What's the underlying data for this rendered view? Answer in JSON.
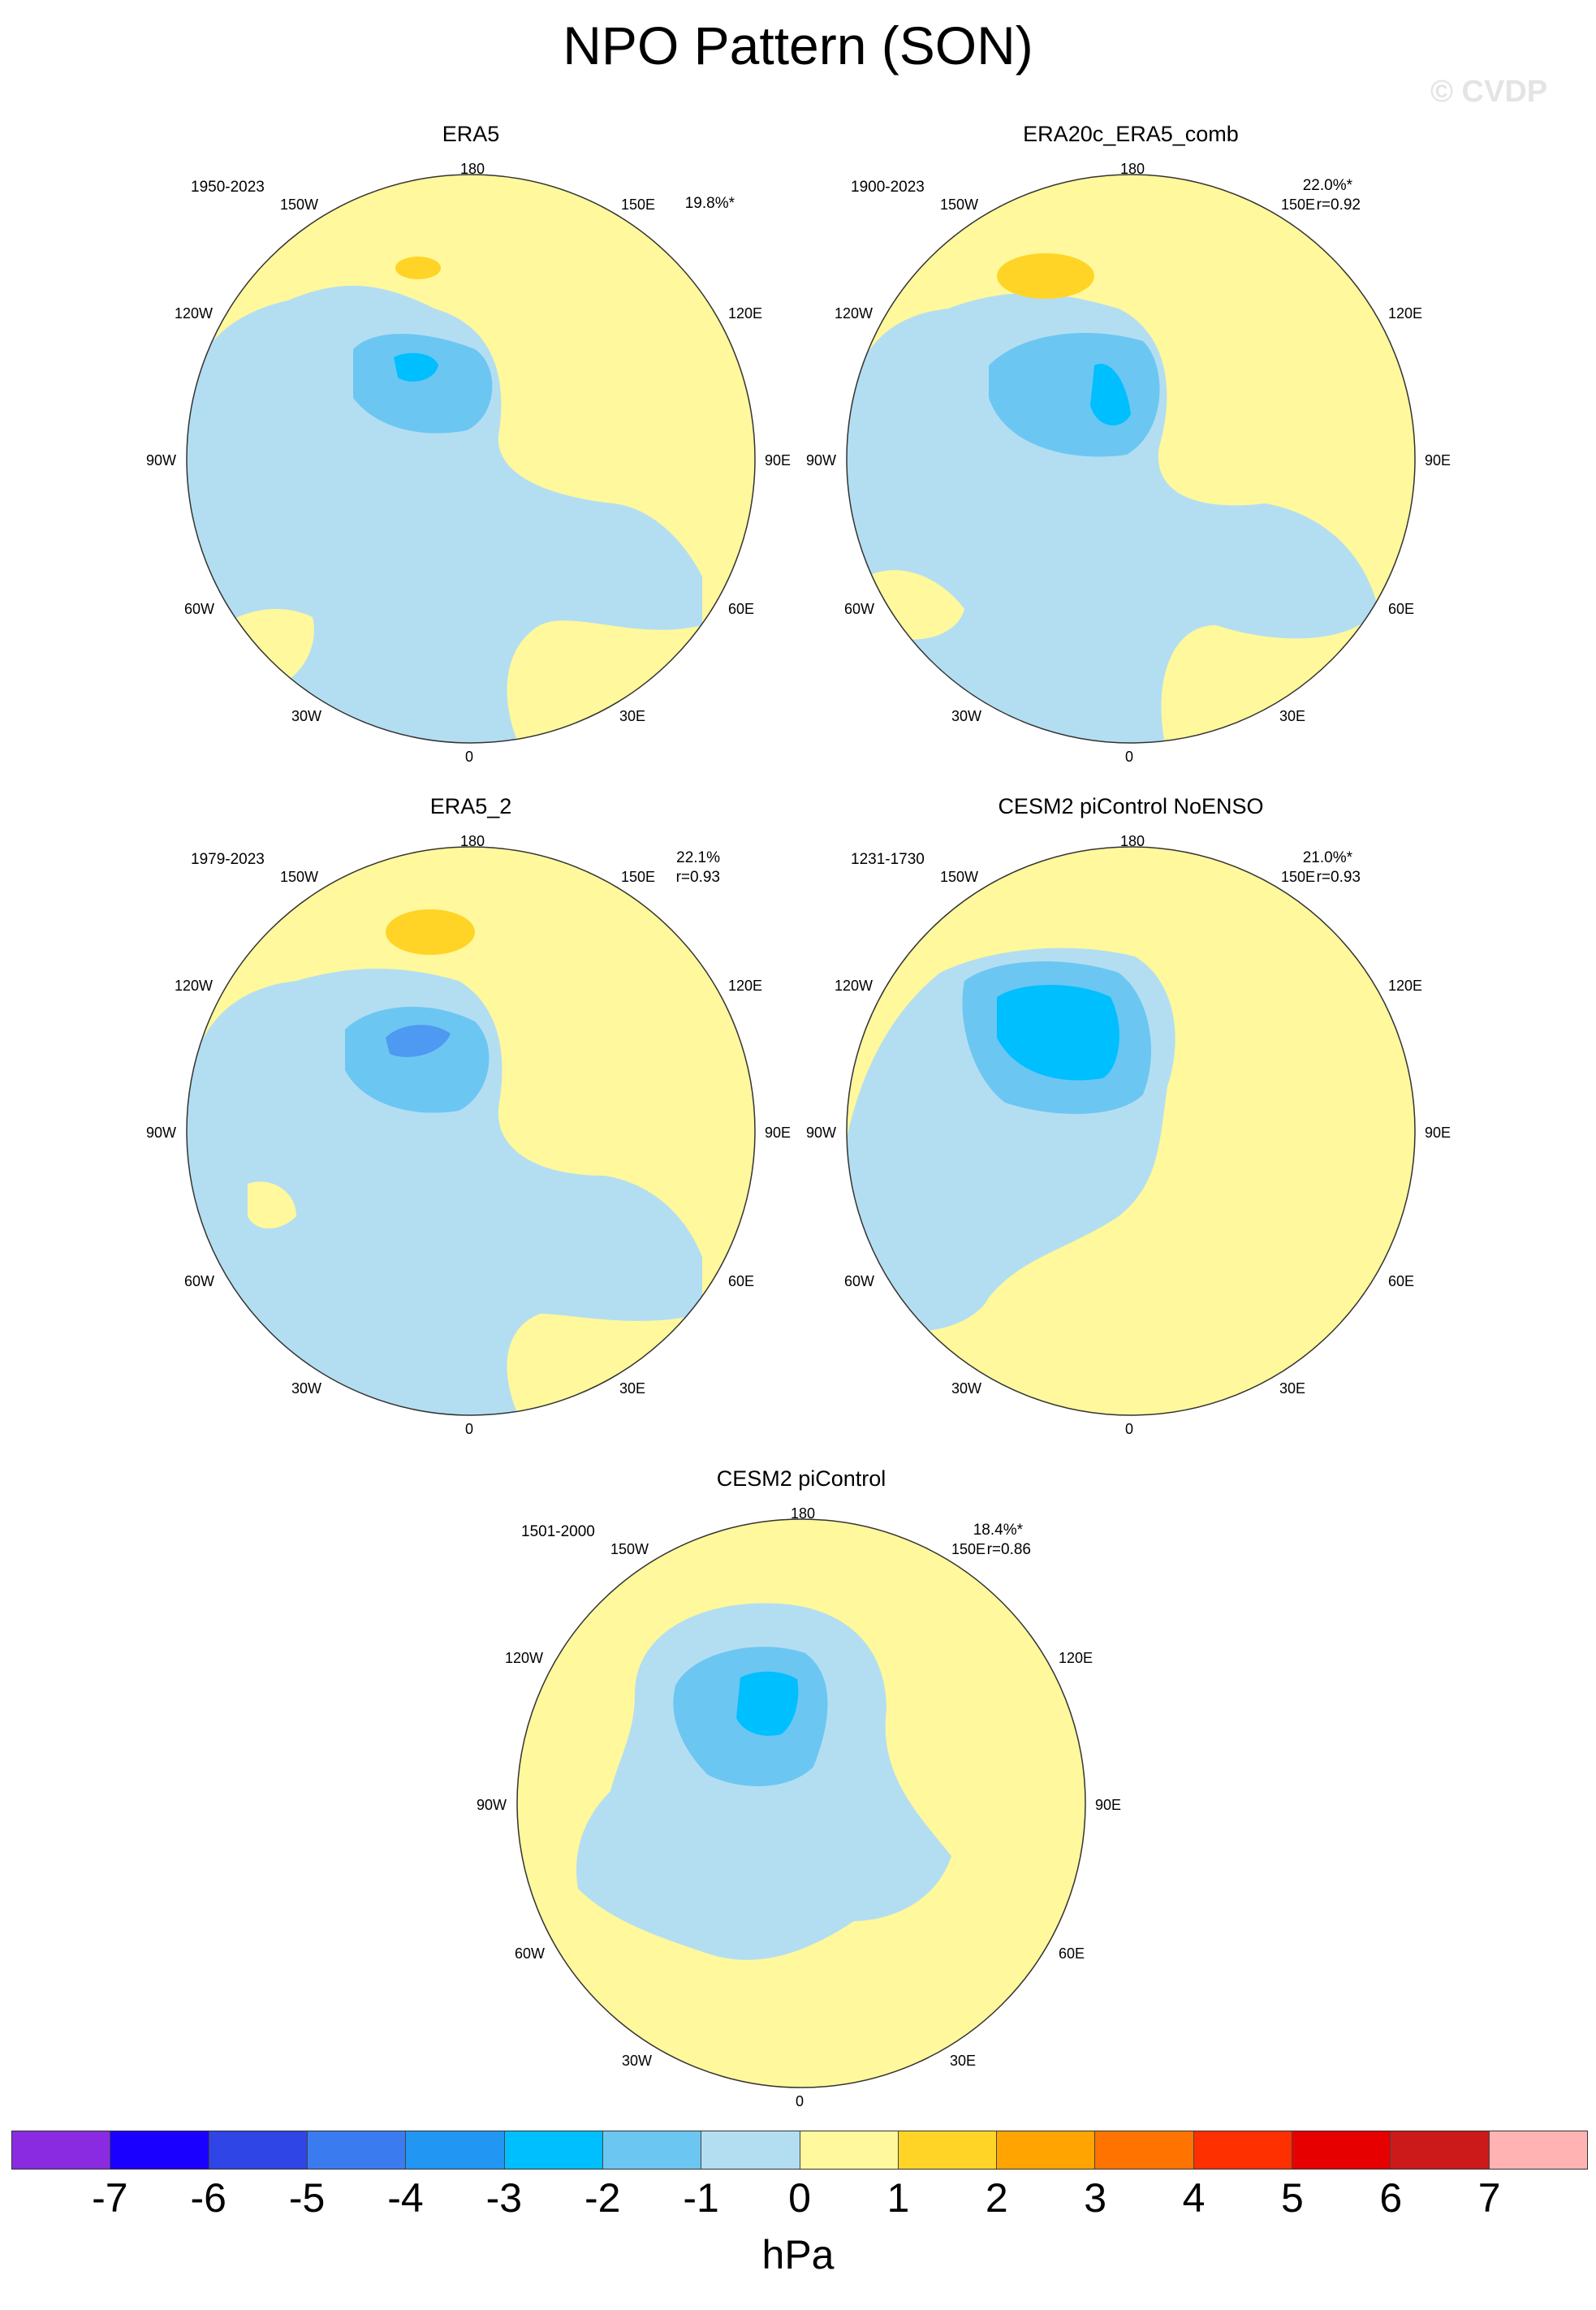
{
  "title": "NPO Pattern (SON)",
  "watermark": "© CVDP",
  "map_labels": {
    "lon_180": "180",
    "lon_150w": "150W",
    "lon_150e": "150E",
    "lon_120w": "120W",
    "lon_120e": "120E",
    "lon_90w": "90W",
    "lon_90e": "90E",
    "lon_60w": "60W",
    "lon_60e": "60E",
    "lon_30w": "30W",
    "lon_30e": "30E",
    "lon_0": "0"
  },
  "panels": [
    {
      "title": "ERA5",
      "period": "1950-2023",
      "variance": "19.8%*",
      "correlation": ""
    },
    {
      "title": "ERA20c_ERA5_comb",
      "period": "1900-2023",
      "variance": "22.0%*",
      "correlation": "r=0.92"
    },
    {
      "title": "ERA5_2",
      "period": "1979-2023",
      "variance": "22.1%",
      "correlation": "r=0.93"
    },
    {
      "title": "CESM2 piControl NoENSO",
      "period": "1231-1730",
      "variance": "21.0%*",
      "correlation": "r=0.93"
    },
    {
      "title": "CESM2 piControl",
      "period": "1501-2000",
      "variance": "18.4%*",
      "correlation": "r=0.86"
    }
  ],
  "colorbar": {
    "units": "hPa",
    "ticks": [
      "-7",
      "-6",
      "-5",
      "-4",
      "-3",
      "-2",
      "-1",
      "0",
      "1",
      "2",
      "3",
      "4",
      "5",
      "6",
      "7"
    ],
    "colors": [
      "#8a2be2",
      "#1a00ff",
      "#2f45e6",
      "#3b7bf0",
      "#2196f3",
      "#00bfff",
      "#6cc6f2",
      "#b3def2",
      "#fff89c",
      "#ffd426",
      "#ffa400",
      "#ff7400",
      "#ff3000",
      "#e60000",
      "#cc1a1a",
      "#ffb3b3"
    ]
  },
  "fill_colors": {
    "positive_weak": "#fff89c",
    "positive_mid": "#ffd426",
    "negative_weak": "#b3def2",
    "negative_mid": "#6cc6f2",
    "negative_strong": "#00bfff"
  }
}
